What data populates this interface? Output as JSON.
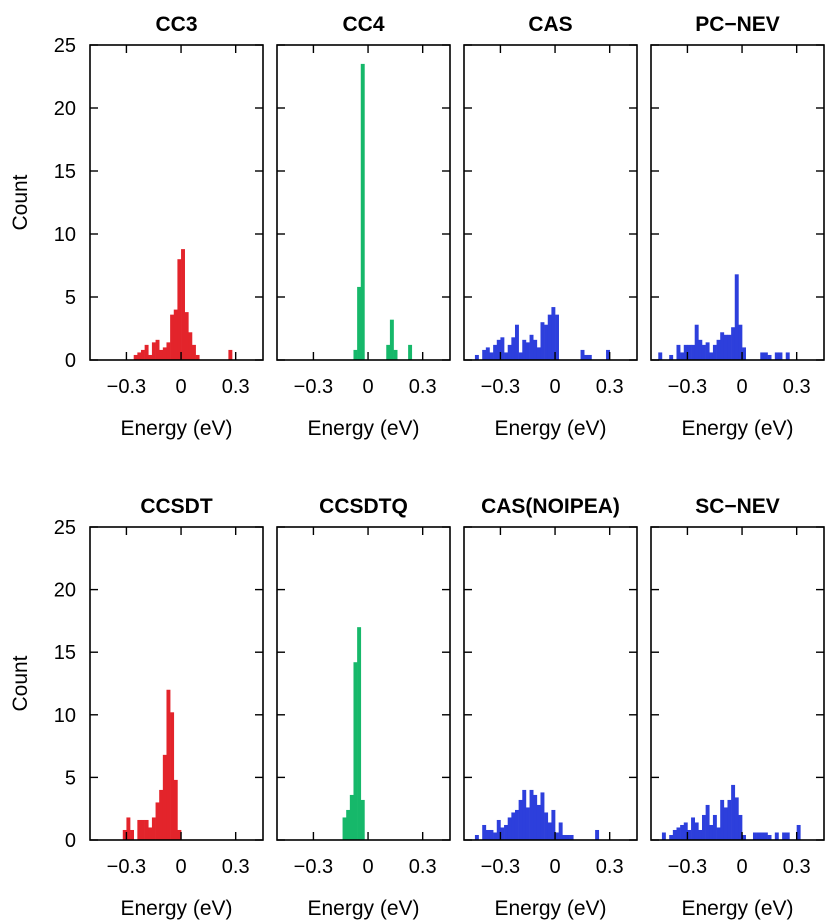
{
  "colors": {
    "cc": "#e3242b",
    "ccq": "#16b86a",
    "cas": "#2d3fdc"
  },
  "ylabel": "Count",
  "xlabel": "Energy (eV)",
  "chart_data": [
    {
      "type": "bar",
      "title": "CC3",
      "color": "#e3242b",
      "xlabel": "Energy (eV)",
      "ylabel": "Count",
      "xlim": [
        -0.5,
        0.45
      ],
      "ylim": [
        0,
        25
      ],
      "xticks": [
        -0.3,
        0,
        0.3
      ],
      "xtick_labels": [
        "−0.3",
        "0",
        "0.3"
      ],
      "yticks": [
        0,
        5,
        10,
        15,
        20,
        25
      ],
      "bin_width": 0.02,
      "x": [
        -0.25,
        -0.23,
        -0.21,
        -0.19,
        -0.17,
        -0.15,
        -0.13,
        -0.11,
        -0.09,
        -0.07,
        -0.05,
        -0.03,
        -0.01,
        0.01,
        0.03,
        0.05,
        0.07,
        0.09,
        0.27
      ],
      "values": [
        0.4,
        0.6,
        0.8,
        1.2,
        0.4,
        1.4,
        1.6,
        0.8,
        1.0,
        1.4,
        3.6,
        4.0,
        8.0,
        8.8,
        3.8,
        2.2,
        1.2,
        0.4,
        0.8
      ]
    },
    {
      "type": "bar",
      "title": "CC4",
      "color": "#16b86a",
      "xlabel": "Energy (eV)",
      "ylabel": "Count",
      "xlim": [
        -0.5,
        0.45
      ],
      "ylim": [
        0,
        25
      ],
      "xticks": [
        -0.3,
        0,
        0.3
      ],
      "xtick_labels": [
        "−0.3",
        "0",
        "0.3"
      ],
      "yticks": [
        0,
        5,
        10,
        15,
        20,
        25
      ],
      "bin_width": 0.02,
      "x": [
        -0.07,
        -0.05,
        -0.03,
        0.11,
        0.13,
        0.15,
        0.23
      ],
      "values": [
        0.8,
        5.8,
        23.5,
        1.2,
        3.2,
        0.8,
        1.2
      ]
    },
    {
      "type": "bar",
      "title": "CAS",
      "color": "#2d3fdc",
      "xlabel": "Energy (eV)",
      "ylabel": "Count",
      "xlim": [
        -0.5,
        0.45
      ],
      "ylim": [
        0,
        25
      ],
      "xticks": [
        -0.3,
        0,
        0.3
      ],
      "xtick_labels": [
        "−0.3",
        "0",
        "0.3"
      ],
      "yticks": [
        0,
        5,
        10,
        15,
        20,
        25
      ],
      "bin_width": 0.02,
      "x": [
        -0.43,
        -0.39,
        -0.37,
        -0.35,
        -0.33,
        -0.31,
        -0.29,
        -0.27,
        -0.25,
        -0.23,
        -0.21,
        -0.19,
        -0.17,
        -0.15,
        -0.13,
        -0.11,
        -0.09,
        -0.07,
        -0.05,
        -0.03,
        -0.01,
        0.01,
        0.15,
        0.17,
        0.19,
        0.29
      ],
      "values": [
        0.4,
        0.8,
        1.0,
        0.6,
        1.2,
        1.6,
        1.8,
        0.6,
        1.2,
        1.8,
        2.8,
        0.6,
        1.6,
        1.4,
        2.0,
        1.6,
        1.0,
        3.0,
        2.8,
        3.6,
        4.2,
        3.6,
        0.8,
        0.4,
        0.4,
        0.8
      ]
    },
    {
      "type": "bar",
      "title": "PC−NEV",
      "color": "#2d3fdc",
      "xlabel": "Energy (eV)",
      "ylabel": "Count",
      "xlim": [
        -0.5,
        0.45
      ],
      "ylim": [
        0,
        25
      ],
      "xticks": [
        -0.3,
        0,
        0.3
      ],
      "xtick_labels": [
        "−0.3",
        "0",
        "0.3"
      ],
      "yticks": [
        0,
        5,
        10,
        15,
        20,
        25
      ],
      "bin_width": 0.02,
      "x": [
        -0.45,
        -0.39,
        -0.35,
        -0.33,
        -0.31,
        -0.29,
        -0.27,
        -0.25,
        -0.23,
        -0.21,
        -0.19,
        -0.17,
        -0.15,
        -0.13,
        -0.11,
        -0.09,
        -0.07,
        -0.05,
        -0.03,
        -0.01,
        0.01,
        0.11,
        0.13,
        0.15,
        0.19,
        0.21,
        0.25
      ],
      "values": [
        0.6,
        0.4,
        1.2,
        0.6,
        1.2,
        1.2,
        1.2,
        2.8,
        1.6,
        1.2,
        1.4,
        0.6,
        1.2,
        1.6,
        2.2,
        2.0,
        2.0,
        2.6,
        6.8,
        2.8,
        1.0,
        0.6,
        0.6,
        0.4,
        0.6,
        0.6,
        0.6
      ]
    },
    {
      "type": "bar",
      "title": "CCSDT",
      "color": "#e3242b",
      "xlabel": "Energy (eV)",
      "ylabel": "Count",
      "xlim": [
        -0.5,
        0.45
      ],
      "ylim": [
        0,
        25
      ],
      "xticks": [
        -0.3,
        0,
        0.3
      ],
      "xtick_labels": [
        "−0.3",
        "0",
        "0.3"
      ],
      "yticks": [
        0,
        5,
        10,
        15,
        20,
        25
      ],
      "bin_width": 0.02,
      "x": [
        -0.31,
        -0.29,
        -0.27,
        -0.23,
        -0.21,
        -0.19,
        -0.17,
        -0.15,
        -0.13,
        -0.11,
        -0.09,
        -0.07,
        -0.05,
        -0.03,
        -0.01
      ],
      "values": [
        0.8,
        1.8,
        0.8,
        1.6,
        1.6,
        1.6,
        1.0,
        1.8,
        3.0,
        4.0,
        6.8,
        12.0,
        10.2,
        4.8,
        0.8
      ]
    },
    {
      "type": "bar",
      "title": "CCSDTQ",
      "color": "#16b86a",
      "xlabel": "Energy (eV)",
      "ylabel": "Count",
      "xlim": [
        -0.5,
        0.45
      ],
      "ylim": [
        0,
        25
      ],
      "xticks": [
        -0.3,
        0,
        0.3
      ],
      "xtick_labels": [
        "−0.3",
        "0",
        "0.3"
      ],
      "yticks": [
        0,
        5,
        10,
        15,
        20,
        25
      ],
      "bin_width": 0.02,
      "x": [
        -0.13,
        -0.11,
        -0.09,
        -0.07,
        -0.05,
        -0.03
      ],
      "values": [
        1.8,
        2.4,
        3.6,
        14.2,
        17.0,
        3.2
      ]
    },
    {
      "type": "bar",
      "title": "CAS(NOIPEA)",
      "color": "#2d3fdc",
      "xlabel": "Energy (eV)",
      "ylabel": "Count",
      "xlim": [
        -0.5,
        0.45
      ],
      "ylim": [
        0,
        25
      ],
      "xticks": [
        -0.3,
        0,
        0.3
      ],
      "xtick_labels": [
        "−0.3",
        "0",
        "0.3"
      ],
      "yticks": [
        0,
        5,
        10,
        15,
        20,
        25
      ],
      "bin_width": 0.02,
      "x": [
        -0.43,
        -0.39,
        -0.37,
        -0.35,
        -0.33,
        -0.31,
        -0.29,
        -0.27,
        -0.25,
        -0.23,
        -0.21,
        -0.19,
        -0.17,
        -0.15,
        -0.13,
        -0.11,
        -0.09,
        -0.07,
        -0.05,
        -0.03,
        -0.01,
        0.01,
        0.03,
        0.05,
        0.07,
        0.09,
        0.23
      ],
      "values": [
        0.4,
        1.2,
        0.8,
        0.8,
        0.6,
        1.6,
        1.0,
        1.2,
        1.8,
        2.2,
        2.4,
        3.2,
        4.0,
        2.6,
        4.0,
        3.6,
        2.8,
        3.8,
        2.2,
        1.4,
        2.4,
        0.6,
        1.4,
        0.4,
        0.4,
        0.4,
        0.8
      ]
    },
    {
      "type": "bar",
      "title": "SC−NEV",
      "color": "#2d3fdc",
      "xlabel": "Energy (eV)",
      "ylabel": "Count",
      "xlim": [
        -0.5,
        0.45
      ],
      "ylim": [
        0,
        25
      ],
      "xticks": [
        -0.3,
        0,
        0.3
      ],
      "xtick_labels": [
        "−0.3",
        "0",
        "0.3"
      ],
      "yticks": [
        0,
        5,
        10,
        15,
        20,
        25
      ],
      "bin_width": 0.02,
      "x": [
        -0.43,
        -0.39,
        -0.37,
        -0.35,
        -0.33,
        -0.31,
        -0.29,
        -0.27,
        -0.25,
        -0.23,
        -0.21,
        -0.19,
        -0.17,
        -0.15,
        -0.13,
        -0.11,
        -0.09,
        -0.07,
        -0.05,
        -0.03,
        -0.01,
        0.01,
        0.07,
        0.09,
        0.11,
        0.13,
        0.15,
        0.19,
        0.23,
        0.25,
        0.31
      ],
      "values": [
        0.6,
        0.4,
        0.8,
        1.0,
        1.2,
        1.4,
        0.8,
        1.8,
        1.4,
        0.8,
        2.0,
        2.8,
        1.2,
        2.0,
        1.0,
        3.2,
        2.6,
        3.2,
        4.4,
        3.4,
        2.0,
        0.4,
        0.6,
        0.6,
        0.6,
        0.6,
        0.4,
        0.6,
        0.6,
        0.6,
        1.2
      ]
    }
  ]
}
